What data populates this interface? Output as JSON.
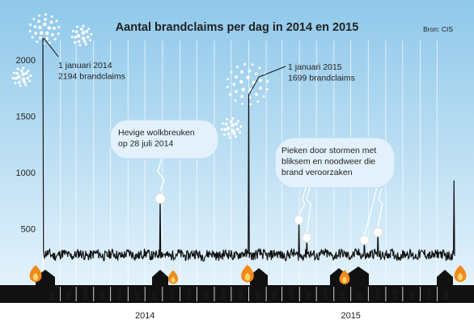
{
  "chart_data": {
    "type": "line",
    "title": "Aantal brandclaims per dag in 2014 en 2015",
    "source": "Bron: CIS",
    "xlabel": "",
    "ylabel": "",
    "ylim": [
      0,
      2400
    ],
    "y_ticks": [
      500,
      1000,
      1500,
      2000
    ],
    "months": [
      "jan",
      "feb",
      "maa",
      "apr",
      "mei",
      "jun",
      "jul",
      "aug",
      "sep",
      "okt",
      "nov",
      "dec",
      "jan",
      "feb",
      "maa",
      "apr",
      "mei",
      "jun",
      "jul",
      "aug",
      "sep",
      "okt",
      "nov",
      "dec"
    ],
    "years": [
      "2014",
      "2015"
    ],
    "grid": "vertical",
    "series": [
      {
        "values_note": "",
        "baseline": 270,
        "points": [
          {
            "x": "2014-01-01",
            "y": 2194
          },
          {
            "x": "2014-07-28",
            "y": 770
          },
          {
            "x": "2015-01-01",
            "y": 1699
          },
          {
            "x": "2015-03-31",
            "y": 580
          },
          {
            "x": "2015-04-14",
            "y": 420
          },
          {
            "x": "2015-07-25",
            "y": 400
          },
          {
            "x": "2015-08-18",
            "y": 470
          },
          {
            "x": "2015-12-31",
            "y": 930
          }
        ]
      }
    ],
    "annotations": [
      {
        "line1": "1 januari 2014",
        "line2": "2194 brandclaims"
      },
      {
        "line1": "1 januari 2015",
        "line2": "1699 brandclaims"
      },
      {
        "line1": "Hevige wolkbreuken",
        "line2": "op 28 juli 2014"
      },
      {
        "line1": "Pieken door stormen met",
        "line2": "bliksem en noodweer die",
        "line3": "brand veroorzaken"
      }
    ],
    "colors": {
      "sky_top": "#8fc8ea",
      "sky_bottom": "#dff1fb",
      "line": "#000000",
      "ground": "#111111",
      "bubble": "#e2f1fb",
      "flame": "#f08a1c"
    }
  }
}
